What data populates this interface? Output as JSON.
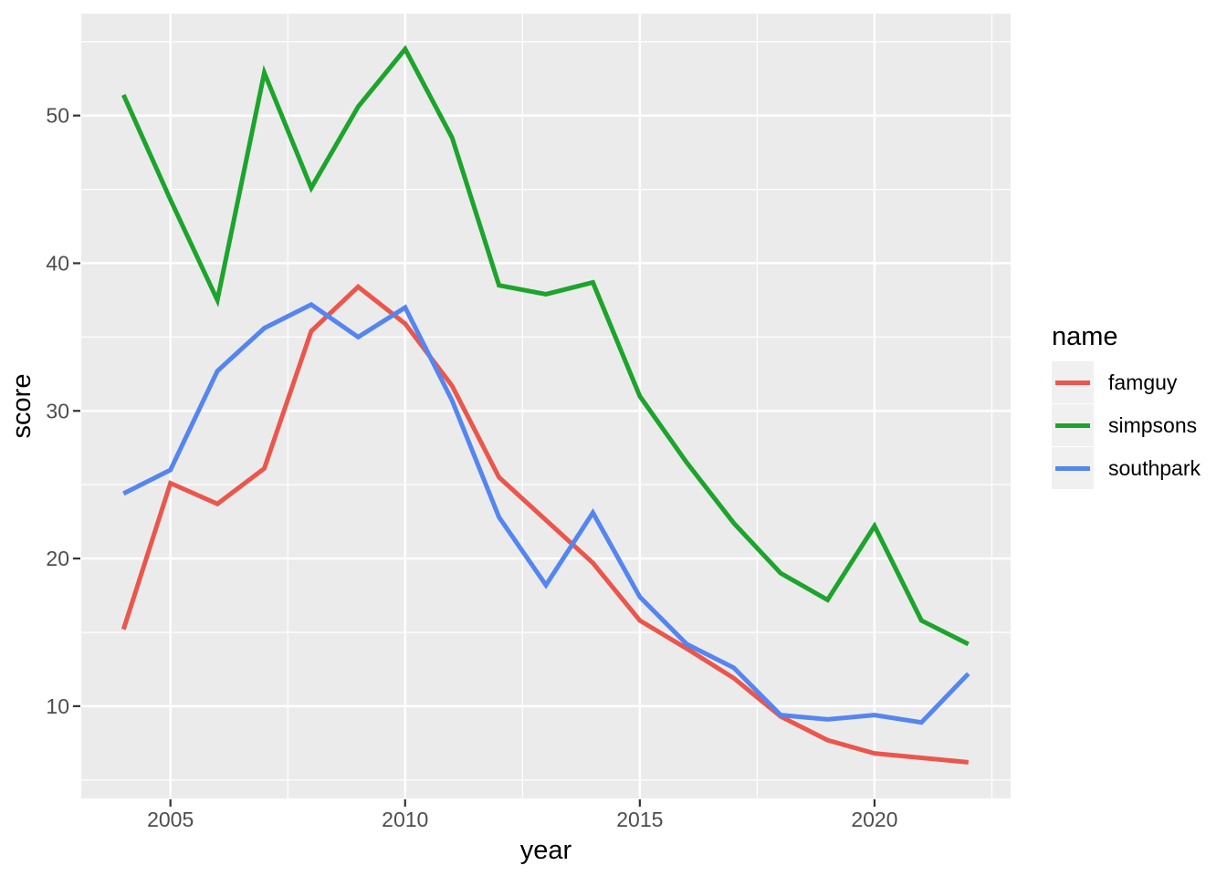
{
  "chart_data": {
    "type": "line",
    "title": "",
    "xlabel": "year",
    "ylabel": "score",
    "legend_title": "name",
    "legend_position": "right",
    "grid": true,
    "x": [
      2004,
      2005,
      2006,
      2007,
      2008,
      2009,
      2010,
      2011,
      2012,
      2013,
      2014,
      2015,
      2016,
      2017,
      2018,
      2019,
      2020,
      2021,
      2022
    ],
    "series": [
      {
        "name": "famguy",
        "color": "#EB564C",
        "values": [
          15.2,
          25.1,
          23.7,
          26.1,
          35.4,
          38.4,
          35.9,
          31.7,
          25.5,
          22.6,
          19.7,
          15.8,
          13.9,
          11.9,
          9.3,
          7.7,
          6.8,
          6.5,
          6.2
        ]
      },
      {
        "name": "simpsons",
        "color": "#1CA42C",
        "values": [
          51.4,
          44.3,
          37.5,
          52.9,
          45.1,
          50.6,
          54.5,
          48.5,
          38.5,
          37.9,
          38.7,
          31.0,
          26.5,
          22.4,
          19.0,
          17.2,
          22.2,
          15.8,
          14.2
        ]
      },
      {
        "name": "southpark",
        "color": "#5585F0",
        "values": [
          24.4,
          26.0,
          32.7,
          35.6,
          37.2,
          35.0,
          37.0,
          30.7,
          22.8,
          18.2,
          23.1,
          17.4,
          14.2,
          12.6,
          9.4,
          9.1,
          9.4,
          8.9,
          12.2
        ]
      }
    ],
    "x_ticks": [
      2005,
      2010,
      2015,
      2020
    ],
    "y_ticks": [
      10,
      20,
      30,
      40,
      50
    ],
    "x_minor_breaks": [
      2007.5,
      2012.5,
      2017.5,
      2022.5
    ],
    "y_minor_breaks": [
      5,
      15,
      25,
      35,
      45,
      55
    ],
    "xlim": [
      2003.1,
      2022.9
    ],
    "ylim": [
      3.75,
      56.9
    ],
    "colors": {
      "panel_background": "#EBEBEB",
      "gridline": "#FFFFFF",
      "tick_mark": "#333333",
      "tick_label": "#4D4D4D",
      "axis_title": "#000000",
      "legend_key_background": "#F0F0F0",
      "figure_background": "#FFFFFF"
    }
  }
}
